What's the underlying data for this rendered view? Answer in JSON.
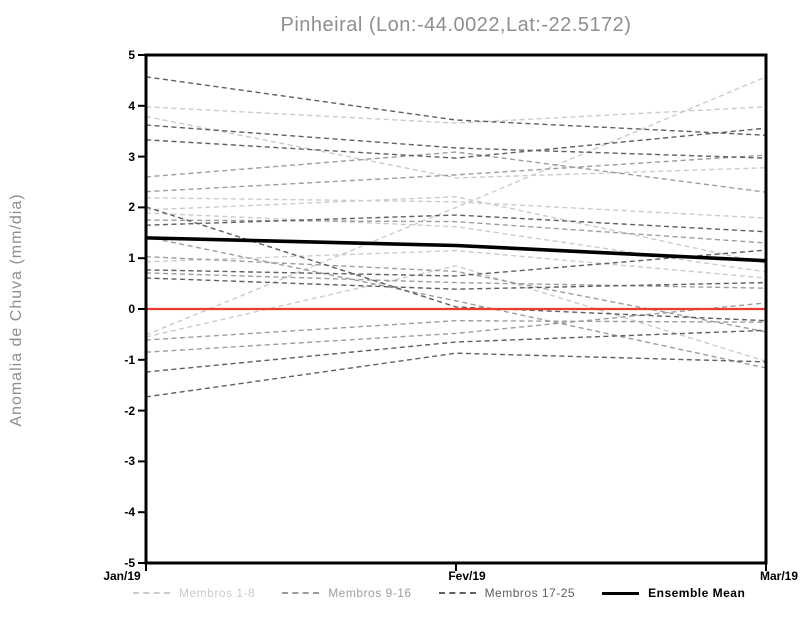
{
  "chart_data": {
    "type": "line",
    "title": "Pinheiral (Lon:-44.0022,Lat:-22.5172)",
    "ylabel": "Anomalia de Chuva (mm/dia)",
    "xlabel": "",
    "x_categories": [
      "Jan/19",
      "Fev/19",
      "Mar/19"
    ],
    "y_ticks": [
      5,
      4,
      3,
      2,
      1,
      0,
      -1,
      -2,
      -3,
      -4,
      -5
    ],
    "ylim": [
      -5,
      5
    ],
    "grid": false,
    "legend_position": "bottom",
    "frame_color": "#000000",
    "zero_line": {
      "value": 0,
      "color": "#ef3a32"
    },
    "groups": [
      {
        "name": "Membros 1-8",
        "color": "#cbcbcb",
        "line_style": "dashed",
        "series": [
          [
            3.98,
            3.66,
            3.98
          ],
          [
            3.79,
            2.58,
            2.78
          ],
          [
            2.19,
            2.11,
            1.79
          ],
          [
            1.95,
            2.21,
            0.9
          ],
          [
            1.89,
            1.62,
            0.73
          ],
          [
            0.93,
            1.15,
            0.61
          ],
          [
            -0.51,
            2.0,
            4.57
          ],
          [
            -0.55,
            0.85,
            -1.03
          ]
        ]
      },
      {
        "name": "Membros 9-16",
        "color": "#9d9d9d",
        "line_style": "dashed",
        "series": [
          [
            2.6,
            3.09,
            2.3
          ],
          [
            2.31,
            2.64,
            3.03
          ],
          [
            1.75,
            1.72,
            1.3
          ],
          [
            1.03,
            0.74,
            -0.45
          ],
          [
            0.71,
            0.52,
            0.41
          ],
          [
            -0.61,
            -0.23,
            -0.26
          ],
          [
            -0.85,
            -0.48,
            0.12
          ],
          [
            1.42,
            0.16,
            -1.16
          ]
        ]
      },
      {
        "name": "Membros 17-25",
        "color": "#5f5f5f",
        "line_style": "dashed",
        "series": [
          [
            4.57,
            3.72,
            3.42
          ],
          [
            3.62,
            3.17,
            2.97
          ],
          [
            3.33,
            2.97,
            3.56
          ],
          [
            1.65,
            1.85,
            1.52
          ],
          [
            0.77,
            0.65,
            1.16
          ],
          [
            0.61,
            0.39,
            0.52
          ],
          [
            -1.24,
            -0.65,
            -0.42
          ],
          [
            -1.73,
            -0.87,
            -1.04
          ],
          [
            2.01,
            0.04,
            -0.23
          ]
        ]
      }
    ],
    "ensemble_mean": {
      "name": "Ensemble Mean",
      "color": "#000000",
      "line_style": "solid",
      "values": [
        1.4,
        1.25,
        0.95
      ]
    }
  }
}
